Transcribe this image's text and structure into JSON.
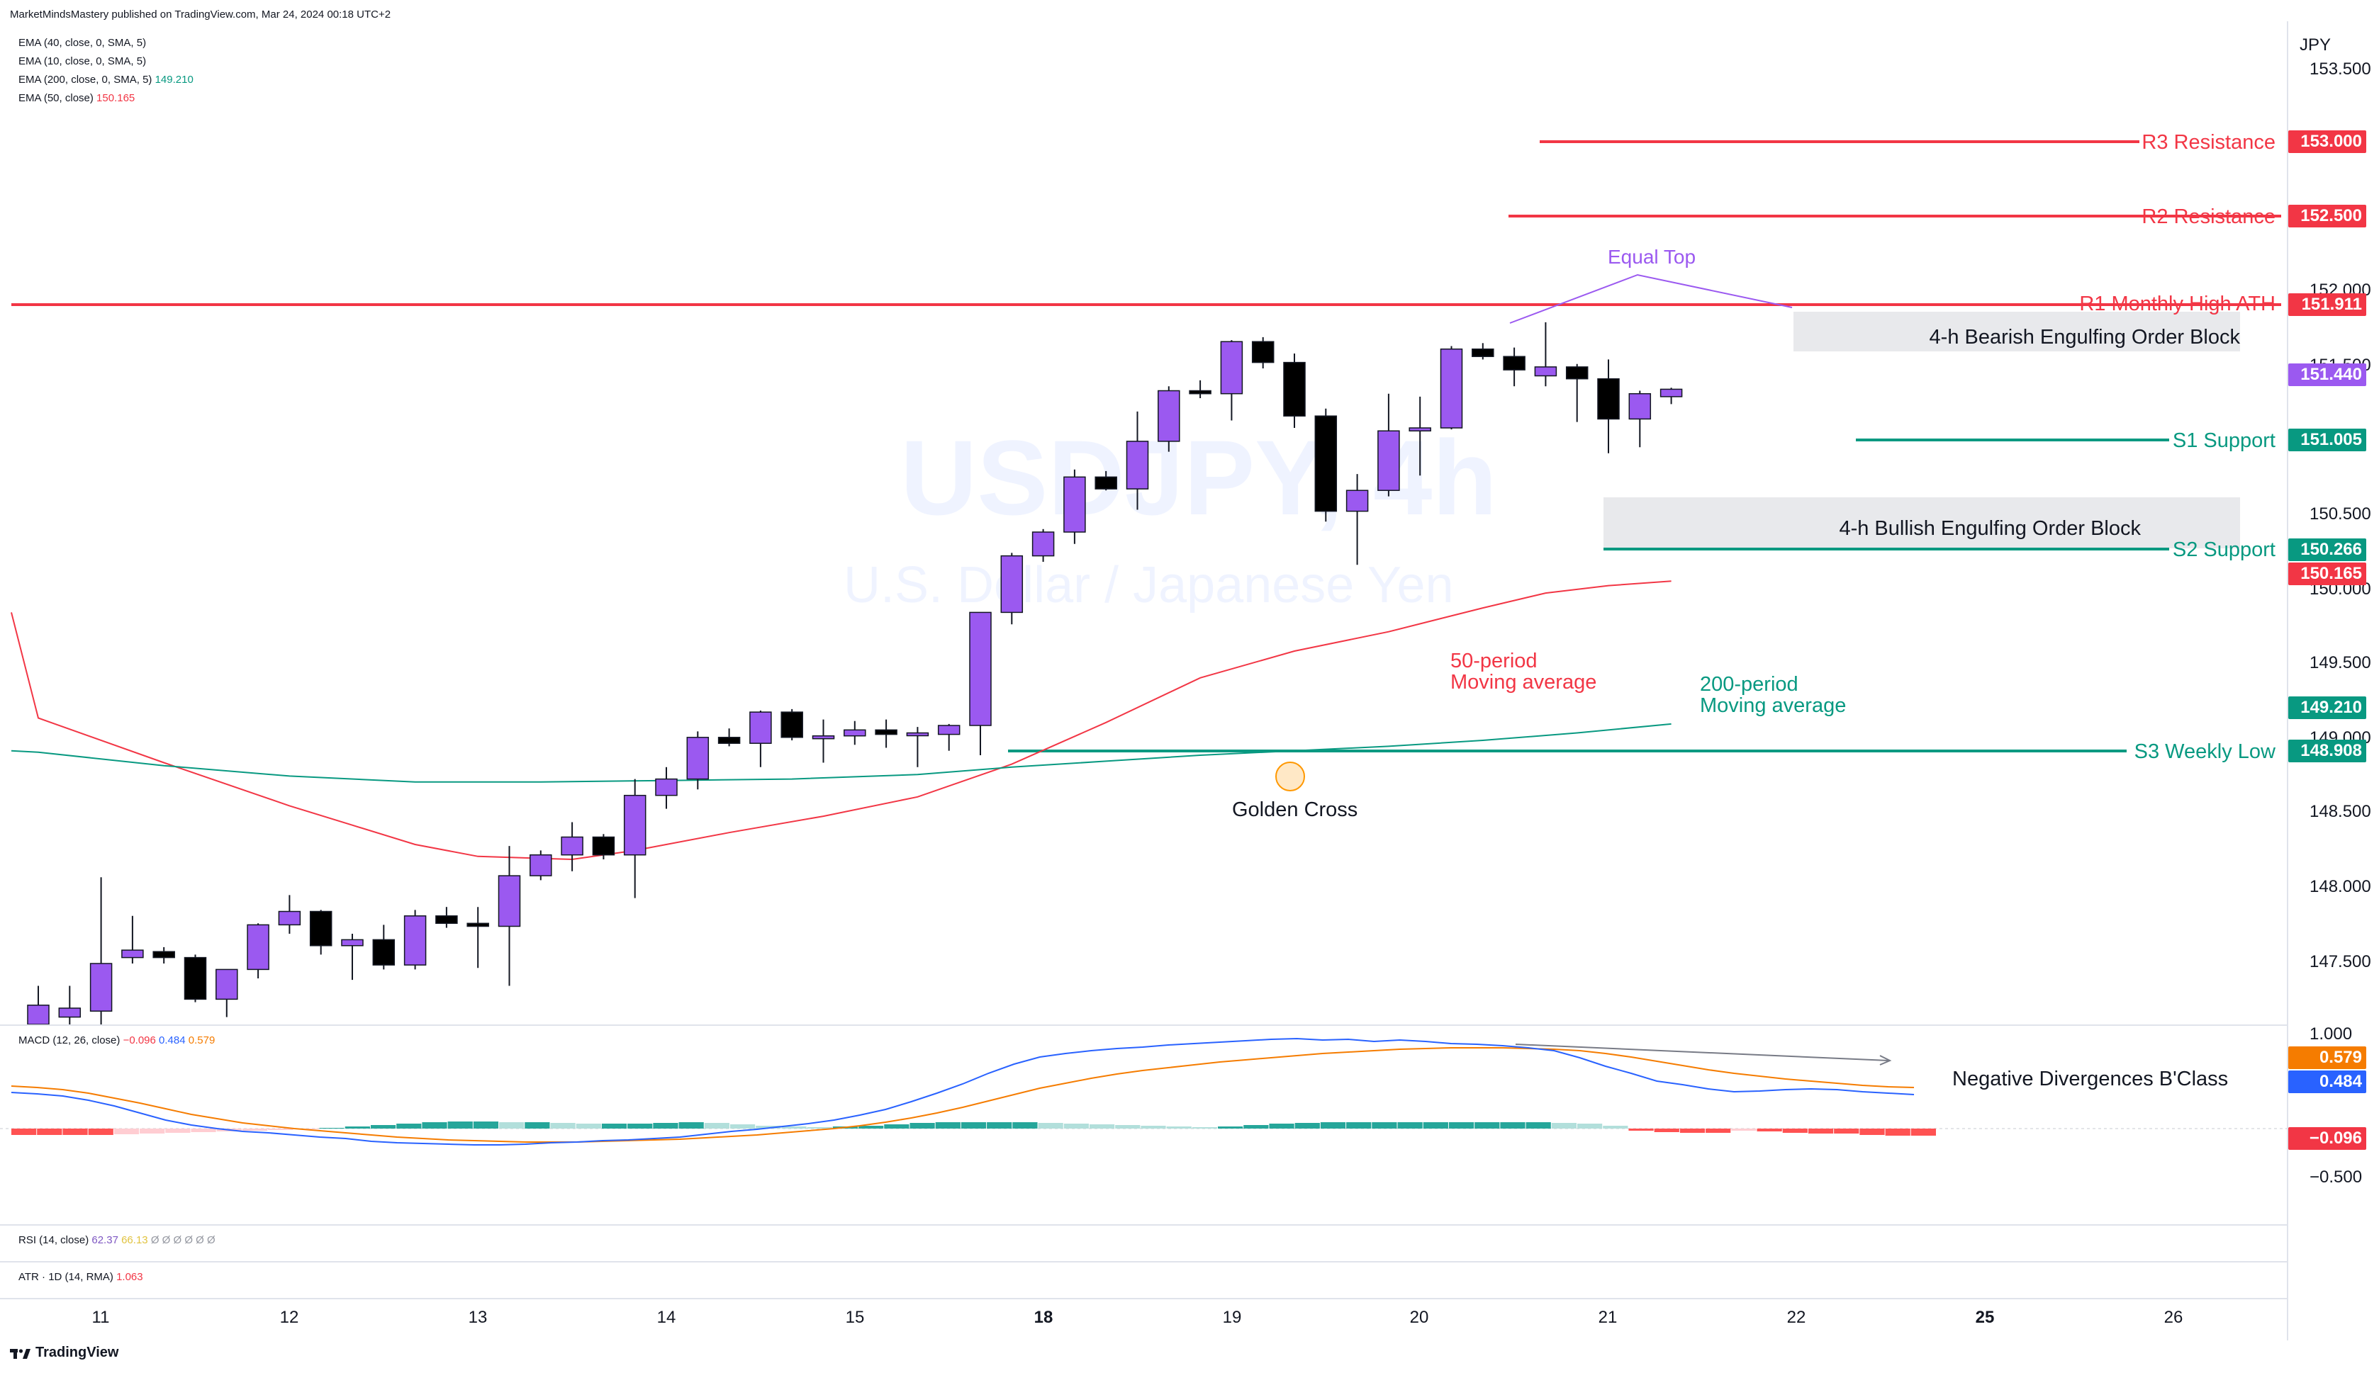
{
  "header": {
    "published_by": "MarketMindsMastery published on TradingView.com, Mar 24, 2024 00:18 UTC+2"
  },
  "watermark": {
    "symbol": "USDJPY, 4h",
    "name": "U.S. Dollar / Japanese Yen"
  },
  "indicators_main": [
    {
      "label": "EMA (40, close, 0, SMA, 5)",
      "value": "",
      "color": "#131722"
    },
    {
      "label": "EMA (10, close, 0, SMA, 5)",
      "value": "",
      "color": "#131722"
    },
    {
      "label": "EMA (200, close, 0, SMA, 5)",
      "value": "149.210",
      "color": "#089981"
    },
    {
      "label": "EMA (50, close)",
      "value": "150.165",
      "color": "#f23645"
    }
  ],
  "macd_legend": {
    "label": "MACD (12, 26, close)",
    "hist": "−0.096",
    "macd": "0.484",
    "signal": "0.579"
  },
  "rsi_legend": {
    "label": "RSI (14, close)",
    "v1": "62.37",
    "v2": "66.13",
    "v3": "Ø Ø Ø Ø Ø Ø"
  },
  "atr_legend": {
    "label": "ATR · 1D (14, RMA)",
    "value": "1.063"
  },
  "currency": "JPY",
  "price_axis": {
    "ticks": [
      "153.500",
      "152.000",
      "151.500",
      "150.500",
      "150.000",
      "149.500",
      "149.000",
      "148.500",
      "148.000",
      "147.500"
    ],
    "macd_ticks": [
      "1.000",
      "−0.500"
    ]
  },
  "price_tags": [
    {
      "value": "153.000",
      "color": "#f23645"
    },
    {
      "value": "152.500",
      "color": "#f23645"
    },
    {
      "value": "151.911",
      "color": "#f23645"
    },
    {
      "value": "151.440",
      "color": "#9b59f0"
    },
    {
      "value": "151.005",
      "color": "#089981"
    },
    {
      "value": "150.266",
      "color": "#089981"
    },
    {
      "value": "150.165",
      "color": "#f23645"
    },
    {
      "value": "149.210",
      "color": "#089981"
    },
    {
      "value": "148.908",
      "color": "#089981"
    }
  ],
  "macd_tags": [
    {
      "value": "0.579",
      "color": "#f57c00"
    },
    {
      "value": "0.484",
      "color": "#2962ff"
    },
    {
      "value": "−0.096",
      "color": "#f23645"
    }
  ],
  "time_axis": [
    "11",
    "12",
    "13",
    "14",
    "15",
    "18",
    "19",
    "20",
    "21",
    "22",
    "25",
    "26"
  ],
  "annotations": {
    "r3": "R3 Resistance",
    "r2": "R2 Resistance",
    "r1": "R1 Monthly High ATH",
    "s1": "S1 Support",
    "s2": "S2 Support",
    "s3": "S3 Weekly Low",
    "equal_top": "Equal Top",
    "bearish_ob": "4-h Bearish Engulfing Order Block",
    "bullish_ob": "4-h Bullish Engulfing Order Block",
    "ma50_line1": "50-period",
    "ma50_line2": "Moving average",
    "ma200_line1": "200-period",
    "ma200_line2": "Moving average",
    "golden_cross": "Golden Cross",
    "neg_div": "Negative Divergences B'Class"
  },
  "footer": {
    "brand": "TradingView"
  },
  "colors": {
    "bull": "#9b59f0",
    "bear": "#000000",
    "resistance": "#f23645",
    "support": "#089981",
    "macd": "#2962ff",
    "signal": "#f57c00"
  },
  "chart_data": {
    "type": "candlestick",
    "symbol": "USDJPY",
    "timeframe": "4h",
    "y_range": [
      147.0,
      153.6
    ],
    "candles": [
      {
        "o": 146.92,
        "h": 147.45,
        "l": 146.9,
        "c": 147.32
      },
      {
        "o": 147.24,
        "h": 147.45,
        "l": 146.95,
        "c": 147.3
      },
      {
        "o": 147.28,
        "h": 148.18,
        "l": 147.0,
        "c": 147.6
      },
      {
        "o": 147.64,
        "h": 147.92,
        "l": 147.6,
        "c": 147.69
      },
      {
        "o": 147.68,
        "h": 147.71,
        "l": 147.6,
        "c": 147.64
      },
      {
        "o": 147.64,
        "h": 147.66,
        "l": 147.34,
        "c": 147.36
      },
      {
        "o": 147.36,
        "h": 147.56,
        "l": 147.24,
        "c": 147.56
      },
      {
        "o": 147.56,
        "h": 147.87,
        "l": 147.5,
        "c": 147.86
      },
      {
        "o": 147.86,
        "h": 148.06,
        "l": 147.8,
        "c": 147.95
      },
      {
        "o": 147.95,
        "h": 147.96,
        "l": 147.66,
        "c": 147.72
      },
      {
        "o": 147.72,
        "h": 147.8,
        "l": 147.49,
        "c": 147.76
      },
      {
        "o": 147.76,
        "h": 147.86,
        "l": 147.56,
        "c": 147.59
      },
      {
        "o": 147.59,
        "h": 147.96,
        "l": 147.56,
        "c": 147.92
      },
      {
        "o": 147.92,
        "h": 147.98,
        "l": 147.84,
        "c": 147.87
      },
      {
        "o": 147.87,
        "h": 147.98,
        "l": 147.57,
        "c": 147.85
      },
      {
        "o": 147.85,
        "h": 148.39,
        "l": 147.45,
        "c": 148.19
      },
      {
        "o": 148.19,
        "h": 148.36,
        "l": 148.16,
        "c": 148.33
      },
      {
        "o": 148.33,
        "h": 148.55,
        "l": 148.22,
        "c": 148.45
      },
      {
        "o": 148.45,
        "h": 148.47,
        "l": 148.3,
        "c": 148.33
      },
      {
        "o": 148.33,
        "h": 148.84,
        "l": 148.04,
        "c": 148.73
      },
      {
        "o": 148.73,
        "h": 148.92,
        "l": 148.64,
        "c": 148.84
      },
      {
        "o": 148.84,
        "h": 149.16,
        "l": 148.77,
        "c": 149.12
      },
      {
        "o": 149.12,
        "h": 149.18,
        "l": 149.06,
        "c": 149.08
      },
      {
        "o": 149.08,
        "h": 149.3,
        "l": 148.92,
        "c": 149.29
      },
      {
        "o": 149.29,
        "h": 149.31,
        "l": 149.1,
        "c": 149.12
      },
      {
        "o": 149.12,
        "h": 149.24,
        "l": 148.95,
        "c": 149.13
      },
      {
        "o": 149.13,
        "h": 149.23,
        "l": 149.07,
        "c": 149.17
      },
      {
        "o": 149.17,
        "h": 149.24,
        "l": 149.05,
        "c": 149.14
      },
      {
        "o": 149.14,
        "h": 149.19,
        "l": 148.92,
        "c": 149.15
      },
      {
        "o": 149.14,
        "h": 149.21,
        "l": 149.03,
        "c": 149.2
      },
      {
        "o": 149.2,
        "h": 149.95,
        "l": 149.0,
        "c": 149.96
      },
      {
        "o": 149.96,
        "h": 150.36,
        "l": 149.88,
        "c": 150.34
      },
      {
        "o": 150.34,
        "h": 150.52,
        "l": 150.3,
        "c": 150.5
      },
      {
        "o": 150.5,
        "h": 150.92,
        "l": 150.42,
        "c": 150.87
      },
      {
        "o": 150.87,
        "h": 150.91,
        "l": 150.78,
        "c": 150.79
      },
      {
        "o": 150.79,
        "h": 151.31,
        "l": 150.65,
        "c": 151.11
      },
      {
        "o": 151.11,
        "h": 151.48,
        "l": 151.04,
        "c": 151.45
      },
      {
        "o": 151.45,
        "h": 151.52,
        "l": 151.4,
        "c": 151.43
      },
      {
        "o": 151.43,
        "h": 151.79,
        "l": 151.25,
        "c": 151.78
      },
      {
        "o": 151.78,
        "h": 151.81,
        "l": 151.6,
        "c": 151.64
      },
      {
        "o": 151.64,
        "h": 151.7,
        "l": 151.2,
        "c": 151.28
      },
      {
        "o": 151.28,
        "h": 151.33,
        "l": 150.57,
        "c": 150.64
      },
      {
        "o": 150.64,
        "h": 150.89,
        "l": 150.28,
        "c": 150.78
      },
      {
        "o": 150.78,
        "h": 151.43,
        "l": 150.74,
        "c": 151.18
      },
      {
        "o": 151.18,
        "h": 151.41,
        "l": 150.88,
        "c": 151.2
      },
      {
        "o": 151.2,
        "h": 151.75,
        "l": 151.19,
        "c": 151.73
      },
      {
        "o": 151.73,
        "h": 151.77,
        "l": 151.66,
        "c": 151.68
      },
      {
        "o": 151.68,
        "h": 151.74,
        "l": 151.48,
        "c": 151.59
      },
      {
        "o": 151.55,
        "h": 151.91,
        "l": 151.48,
        "c": 151.61
      },
      {
        "o": 151.61,
        "h": 151.63,
        "l": 151.24,
        "c": 151.53
      },
      {
        "o": 151.53,
        "h": 151.66,
        "l": 151.03,
        "c": 151.26
      },
      {
        "o": 151.26,
        "h": 151.45,
        "l": 151.07,
        "c": 151.43
      },
      {
        "o": 151.41,
        "h": 151.47,
        "l": 151.36,
        "c": 151.46
      }
    ],
    "ema50": [
      [
        0,
        149.25
      ],
      [
        4,
        148.95
      ],
      [
        8,
        148.66
      ],
      [
        10,
        148.53
      ],
      [
        12,
        148.4
      ],
      [
        14,
        148.32
      ],
      [
        17,
        148.3
      ],
      [
        19,
        148.36
      ],
      [
        22,
        148.48
      ],
      [
        25,
        148.59
      ],
      [
        28,
        148.72
      ],
      [
        31,
        148.94
      ],
      [
        34,
        149.22
      ],
      [
        37,
        149.52
      ],
      [
        40,
        149.7
      ],
      [
        43,
        149.83
      ],
      [
        46,
        149.99
      ],
      [
        48,
        150.09
      ],
      [
        50,
        150.14
      ],
      [
        52,
        150.17
      ]
    ],
    "ema200": [
      [
        0,
        149.02
      ],
      [
        4,
        148.93
      ],
      [
        8,
        148.86
      ],
      [
        12,
        148.82
      ],
      [
        16,
        148.82
      ],
      [
        20,
        148.83
      ],
      [
        24,
        148.84
      ],
      [
        28,
        148.87
      ],
      [
        31,
        148.92
      ],
      [
        34,
        148.96
      ],
      [
        37,
        149.0
      ],
      [
        40,
        149.03
      ],
      [
        43,
        149.06
      ],
      [
        46,
        149.1
      ],
      [
        49,
        149.15
      ],
      [
        52,
        149.21
      ]
    ],
    "macd_line": [
      0.51,
      0.49,
      0.46,
      0.4,
      0.32,
      0.22,
      0.12,
      0.05,
      0.0,
      -0.04,
      -0.06,
      -0.09,
      -0.12,
      -0.14,
      -0.18,
      -0.2,
      -0.21,
      -0.22,
      -0.23,
      -0.23,
      -0.22,
      -0.2,
      -0.19,
      -0.17,
      -0.16,
      -0.14,
      -0.12,
      -0.08,
      -0.04,
      -0.01,
      0.03,
      0.07,
      0.12,
      0.19,
      0.27,
      0.38,
      0.5,
      0.63,
      0.78,
      0.91,
      1.01,
      1.06,
      1.1,
      1.13,
      1.15,
      1.18,
      1.2,
      1.22,
      1.24,
      1.26,
      1.27,
      1.25,
      1.26,
      1.23,
      1.25,
      1.23,
      1.2,
      1.19,
      1.17,
      1.14,
      1.1,
      1.0,
      0.88,
      0.78,
      0.67,
      0.62,
      0.56,
      0.52,
      0.53,
      0.55,
      0.56,
      0.55,
      0.52,
      0.5,
      0.48
    ],
    "signal_line": [
      0.6,
      0.58,
      0.55,
      0.5,
      0.43,
      0.36,
      0.28,
      0.2,
      0.14,
      0.08,
      0.04,
      0.0,
      -0.03,
      -0.06,
      -0.09,
      -0.12,
      -0.14,
      -0.16,
      -0.17,
      -0.18,
      -0.19,
      -0.19,
      -0.19,
      -0.18,
      -0.17,
      -0.16,
      -0.15,
      -0.13,
      -0.11,
      -0.09,
      -0.06,
      -0.03,
      0.0,
      0.04,
      0.09,
      0.15,
      0.22,
      0.3,
      0.39,
      0.48,
      0.57,
      0.64,
      0.71,
      0.77,
      0.82,
      0.86,
      0.9,
      0.94,
      0.97,
      1.0,
      1.03,
      1.06,
      1.08,
      1.1,
      1.12,
      1.13,
      1.14,
      1.14,
      1.14,
      1.13,
      1.12,
      1.1,
      1.06,
      1.01,
      0.95,
      0.89,
      0.83,
      0.78,
      0.74,
      0.7,
      0.67,
      0.64,
      0.61,
      0.59,
      0.58
    ],
    "macd_hist": [
      -0.09,
      -0.09,
      -0.09,
      -0.09,
      -0.08,
      -0.07,
      -0.06,
      -0.05,
      -0.04,
      -0.03,
      -0.02,
      -0.01,
      0.01,
      0.03,
      0.05,
      0.07,
      0.09,
      0.1,
      0.1,
      0.09,
      0.09,
      0.08,
      0.07,
      0.07,
      0.07,
      0.08,
      0.09,
      0.08,
      0.06,
      0.04,
      0.03,
      0.02,
      0.03,
      0.04,
      0.06,
      0.08,
      0.09,
      0.09,
      0.09,
      0.09,
      0.08,
      0.07,
      0.06,
      0.05,
      0.04,
      0.03,
      0.02,
      0.03,
      0.05,
      0.07,
      0.08,
      0.09,
      0.09,
      0.09,
      0.09,
      0.09,
      0.09,
      0.09,
      0.09,
      0.09,
      0.08,
      0.07,
      0.04,
      -0.03,
      -0.05,
      -0.06,
      -0.06,
      -0.03,
      -0.04,
      -0.06,
      -0.07,
      -0.07,
      -0.09,
      -0.1,
      -0.1
    ]
  }
}
